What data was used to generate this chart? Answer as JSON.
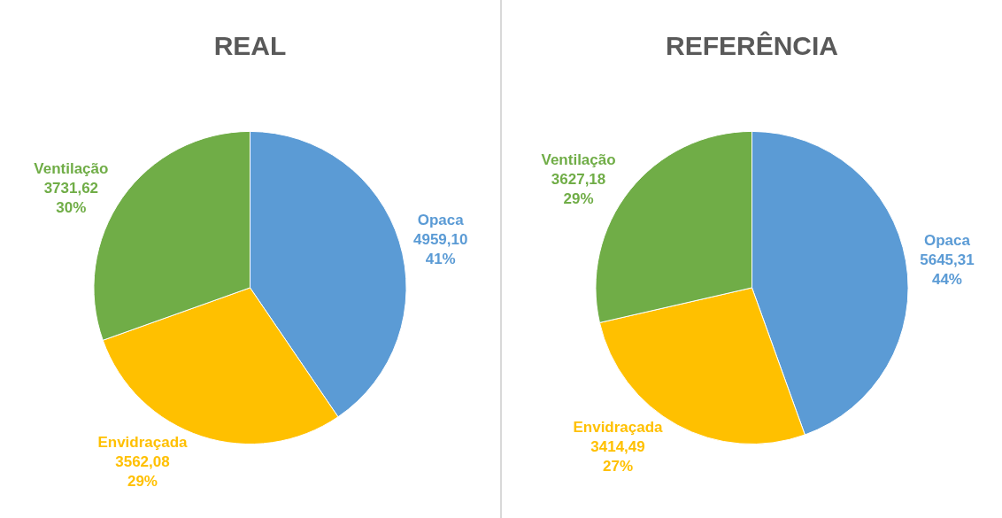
{
  "chart_data": [
    {
      "type": "pie",
      "title": "REAL",
      "categories": [
        "Opaca",
        "Envidraçada",
        "Ventilação"
      ],
      "values": [
        4959.1,
        3562.08,
        3731.62
      ],
      "colors": [
        "#5b9bd5",
        "#ffc000",
        "#70ad47"
      ],
      "value_labels": [
        "4959,10\n41%",
        "3562,08\n29%",
        "3731,62\n30%"
      ],
      "legend": false
    },
    {
      "type": "pie",
      "title": "REFERÊNCIA",
      "categories": [
        "Opaca",
        "Envidraçada",
        "Ventilação"
      ],
      "values": [
        5645.31,
        3414.49,
        3627.18
      ],
      "colors": [
        "#5b9bd5",
        "#ffc000",
        "#70ad47"
      ],
      "value_labels": [
        "5645,31\n44%",
        "3414,49\n27%",
        "3627,18\n29%"
      ],
      "legend": false
    }
  ]
}
